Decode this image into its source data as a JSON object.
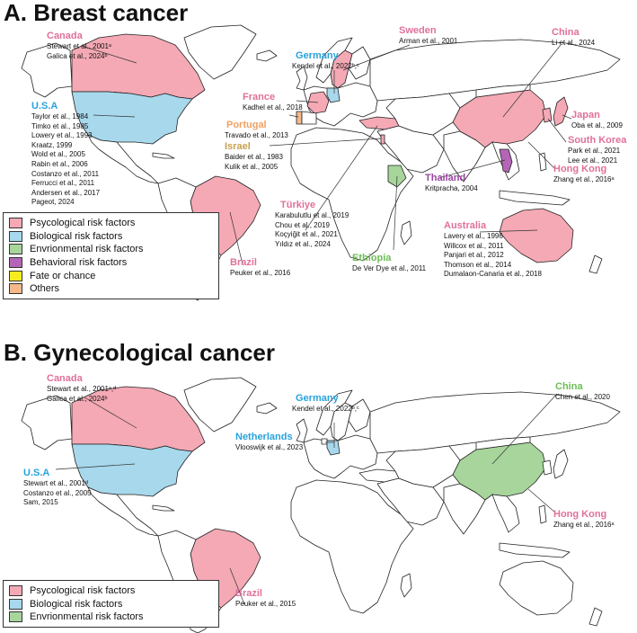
{
  "colors": {
    "psychological": "#f4a9b5",
    "biological": "#a8d8ec",
    "environmental": "#a7d59b",
    "behavioral": "#b565b7",
    "fate": "#f6ec1f",
    "others": "#f4b98a",
    "pink_text": "#e0709a",
    "blue_text": "#27a2dc",
    "green_text": "#6cbd55",
    "purple_text": "#9b45a0",
    "orange_text": "#f0a060",
    "tan_text": "#c8a050",
    "land": "#ffffff",
    "coast": "#222222"
  },
  "breast": {
    "title": "A. Breast cancer",
    "legend": [
      {
        "label": "Psycological risk factors",
        "color": "#f4a9b5"
      },
      {
        "label": "Biological risk factors",
        "color": "#a8d8ec"
      },
      {
        "label": "Envrionmental risk factors",
        "color": "#a7d59b"
      },
      {
        "label": "Behavioral risk factors",
        "color": "#b565b7"
      },
      {
        "label": "Fate or chance",
        "color": "#f6ec1f"
      },
      {
        "label": "Others",
        "color": "#f4b98a"
      }
    ],
    "countries": {
      "canada": {
        "name": "Canada",
        "cites": [
          "Stewart et al., 2001ᵃ",
          "Galica et al., 2024ᵇ"
        ]
      },
      "usa": {
        "name": "U.S.A",
        "cites": [
          "Taylor et al., 1984",
          "Timko et al., 1985",
          "Lowery et al., 1993",
          "Kraatz, 1999",
          "Wold et al., 2005",
          "Rabin et al., 2006",
          "Costanzo et al., 2011",
          "Ferrucci et al., 2011",
          "Andersen et al., 2017",
          "Pageot, 2024"
        ]
      },
      "sweden": {
        "name": "Sweden",
        "cites": [
          "Arman et al., 2001"
        ]
      },
      "germany": {
        "name": "Germany",
        "cites": [
          "Kendel et al., 2022ᵇ,ᶜ"
        ]
      },
      "france": {
        "name": "France",
        "cites": [
          "Kadhel et al., 2018"
        ]
      },
      "portugal": {
        "name": "Portugal",
        "cites": [
          "Travado et al., 2013"
        ]
      },
      "israel": {
        "name": "Israel",
        "cites": [
          "Baider et al., 1983",
          "Kulik et al., 2005"
        ]
      },
      "turkiye": {
        "name": "Türkiye",
        "cites": [
          "Karabulutlu et al., 2019",
          "Chou et al., 2019",
          "Koçyiğit et al., 2021",
          "Yıldız et al., 2024"
        ]
      },
      "ethiopia": {
        "name": "Ethiopia",
        "cites": [
          "De Ver Dye et al., 2011"
        ]
      },
      "brazil": {
        "name": "Brazil",
        "cites": [
          "Peuker et al., 2016"
        ]
      },
      "china": {
        "name": "China",
        "cites": [
          "Li et al., 2024"
        ]
      },
      "japan": {
        "name": "Japan",
        "cites": [
          "Oba et al., 2009"
        ]
      },
      "south_korea": {
        "name": "South Korea",
        "cites": [
          "Park et al., 2021",
          "Lee et al., 2021"
        ]
      },
      "hong_kong": {
        "name": "Hong Kong",
        "cites": [
          "Zhang et al., 2016ᵃ"
        ]
      },
      "thailand": {
        "name": "Thailand",
        "cites": [
          "Kritpracha, 2004"
        ]
      },
      "australia": {
        "name": "Australia",
        "cites": [
          "Lavery et al., 1996",
          "Willcox et al., 2011",
          "Panjari et al., 2012",
          "Thomson et al., 2014",
          "Dumalaon-Canaria et al., 2018"
        ]
      }
    }
  },
  "gyn": {
    "title": "B. Gynecological cancer",
    "legend": [
      {
        "label": "Psycological risk factors",
        "color": "#f4a9b5"
      },
      {
        "label": "Biological risk factors",
        "color": "#a8d8ec"
      },
      {
        "label": "Envrionmental risk factors",
        "color": "#a7d59b"
      }
    ],
    "countries": {
      "canada": {
        "name": "Canada",
        "cites": [
          "Stewart et al., 2001ᵃ,ᵈ",
          "Galica et al., 2024ᵇ"
        ]
      },
      "usa": {
        "name": "U.S.A",
        "cites": [
          "Stewart et al., 2001ᵈ",
          "Costanzo et al., 2005",
          "Sam, 2015"
        ]
      },
      "germany": {
        "name": "Germany",
        "cites": [
          "Kendel et al., 2022ᵇ,ᶜ"
        ]
      },
      "netherlands": {
        "name": "Netherlands",
        "cites": [
          "Vlooswijk et al., 2023"
        ]
      },
      "china": {
        "name": "China",
        "cites": [
          "Chen et al., 2020"
        ]
      },
      "hong_kong": {
        "name": "Hong Kong",
        "cites": [
          "Zhang et al., 2016ᵃ"
        ]
      },
      "brazil": {
        "name": "Brazil",
        "cites": [
          "Peuker et al., 2015"
        ]
      }
    }
  }
}
